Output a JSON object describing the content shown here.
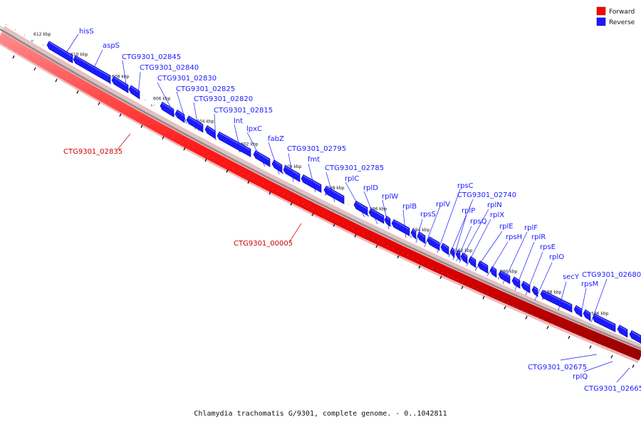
{
  "legend": {
    "forward_label": "Forward",
    "reverse_label": "Reverse",
    "forward_color": "#ff0000",
    "reverse_color": "#1a1aff"
  },
  "caption": "Chlamydia trachomatis G/9301, complete genome. - 0..1042811",
  "ticks": [
    {
      "label": "612 kbp"
    },
    {
      "label": "610 kbp"
    },
    {
      "label": "608 kbp"
    },
    {
      "label": "606 kbp"
    },
    {
      "label": "604 kbp"
    },
    {
      "label": "602 kbp"
    },
    {
      "label": "600 kbp"
    },
    {
      "label": "598 kbp"
    },
    {
      "label": "596 kbp"
    },
    {
      "label": "594 kbp"
    },
    {
      "label": "592 kbp"
    },
    {
      "label": "590 kbp"
    },
    {
      "label": "588 kbp"
    },
    {
      "label": "586 kbp"
    }
  ],
  "reverse_genes": [
    "hisS",
    "aspS",
    "CTG9301_02845",
    "CTG9301_02840",
    "CTG9301_02830",
    "CTG9301_02825",
    "CTG9301_02820",
    "CTG9301_02815",
    "lnt",
    "lpxC",
    "fabZ",
    "CTG9301_02795",
    "fmt",
    "CTG9301_02785",
    "rplC",
    "rplD",
    "rplW",
    "rplB",
    "rpsS",
    "rplV",
    "rpsC",
    "CTG9301_02740",
    "rplP",
    "rplN",
    "rpsQ",
    "rplX",
    "rplE",
    "rpsH",
    "rplF",
    "rplR",
    "rpsE",
    "rplO",
    "secY",
    "CTG9301_02680",
    "rpsM"
  ],
  "lower_genes": [
    "CTG9301_02675",
    "rplQ",
    "CTG9301_02665"
  ],
  "forward_genes": [
    "CTG9301_02835",
    "CTG9301_00005"
  ]
}
